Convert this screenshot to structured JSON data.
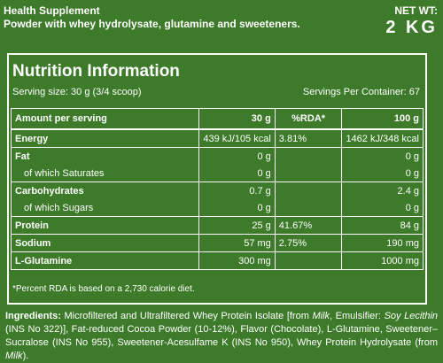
{
  "header": {
    "line1": "Health Supplement",
    "line2": "Powder with whey hydrolysate, glutamine and sweeteners.",
    "net_wt_label": "NET WT:",
    "net_wt_value": "2 KG"
  },
  "nutrition": {
    "title": "Nutrition Information",
    "serving_size": "Serving size: 30 g (3/4 scoop)",
    "servings_per_container": "Servings Per Container: 67",
    "columns": [
      "Amount per serving",
      "30 g",
      "%RDA*",
      "100 g"
    ],
    "rows": [
      {
        "name": "Energy",
        "per_serving": "439 kJ/105 kcal",
        "rda": "3.81%",
        "per_100g": "1462 kJ/348 kcal"
      },
      {
        "name": "Fat",
        "per_serving": "0 g",
        "rda": "",
        "per_100g": "0 g"
      },
      {
        "name": "of which Saturates",
        "per_serving": "0 g",
        "rda": "",
        "per_100g": "0 g"
      },
      {
        "name": "Carbohydrates",
        "per_serving": "0.7 g",
        "rda": "",
        "per_100g": "2.4 g"
      },
      {
        "name": "of which Sugars",
        "per_serving": "0 g",
        "rda": "",
        "per_100g": "0 g"
      },
      {
        "name": "Protein",
        "per_serving": "25 g",
        "rda": "41.67%",
        "per_100g": "84 g"
      },
      {
        "name": "Sodium",
        "per_serving": "57 mg",
        "rda": "2.75%",
        "per_100g": "190 mg"
      },
      {
        "name": "L-Glutamine",
        "per_serving": "300 mg",
        "rda": "",
        "per_100g": "1000 mg"
      }
    ],
    "footnote": "*Percent RDA is based on a 2,730 calorie diet."
  },
  "ingredients": {
    "label": "Ingredients:",
    "part1": " Microfiltered and Ultrafiltered Whey Protein Isolate [from ",
    "milk1": "Milk",
    "part2": ", Emulsifier: ",
    "lecithin": "Soy Lecithin",
    "part3": " (INS No 322)], Fat-reduced Cocoa Powder (10-12%), Flavor (Chocolate), L-Glutamine, Sweetener–Sucralose (INS No 955), Sweetener-Acesulfame K (INS No 950), Whey Protein Hydrolysate (from ",
    "milk2": "Milk",
    "part4": ")."
  },
  "colors": {
    "background": "#3d7a2a",
    "text": "#ffffff"
  }
}
